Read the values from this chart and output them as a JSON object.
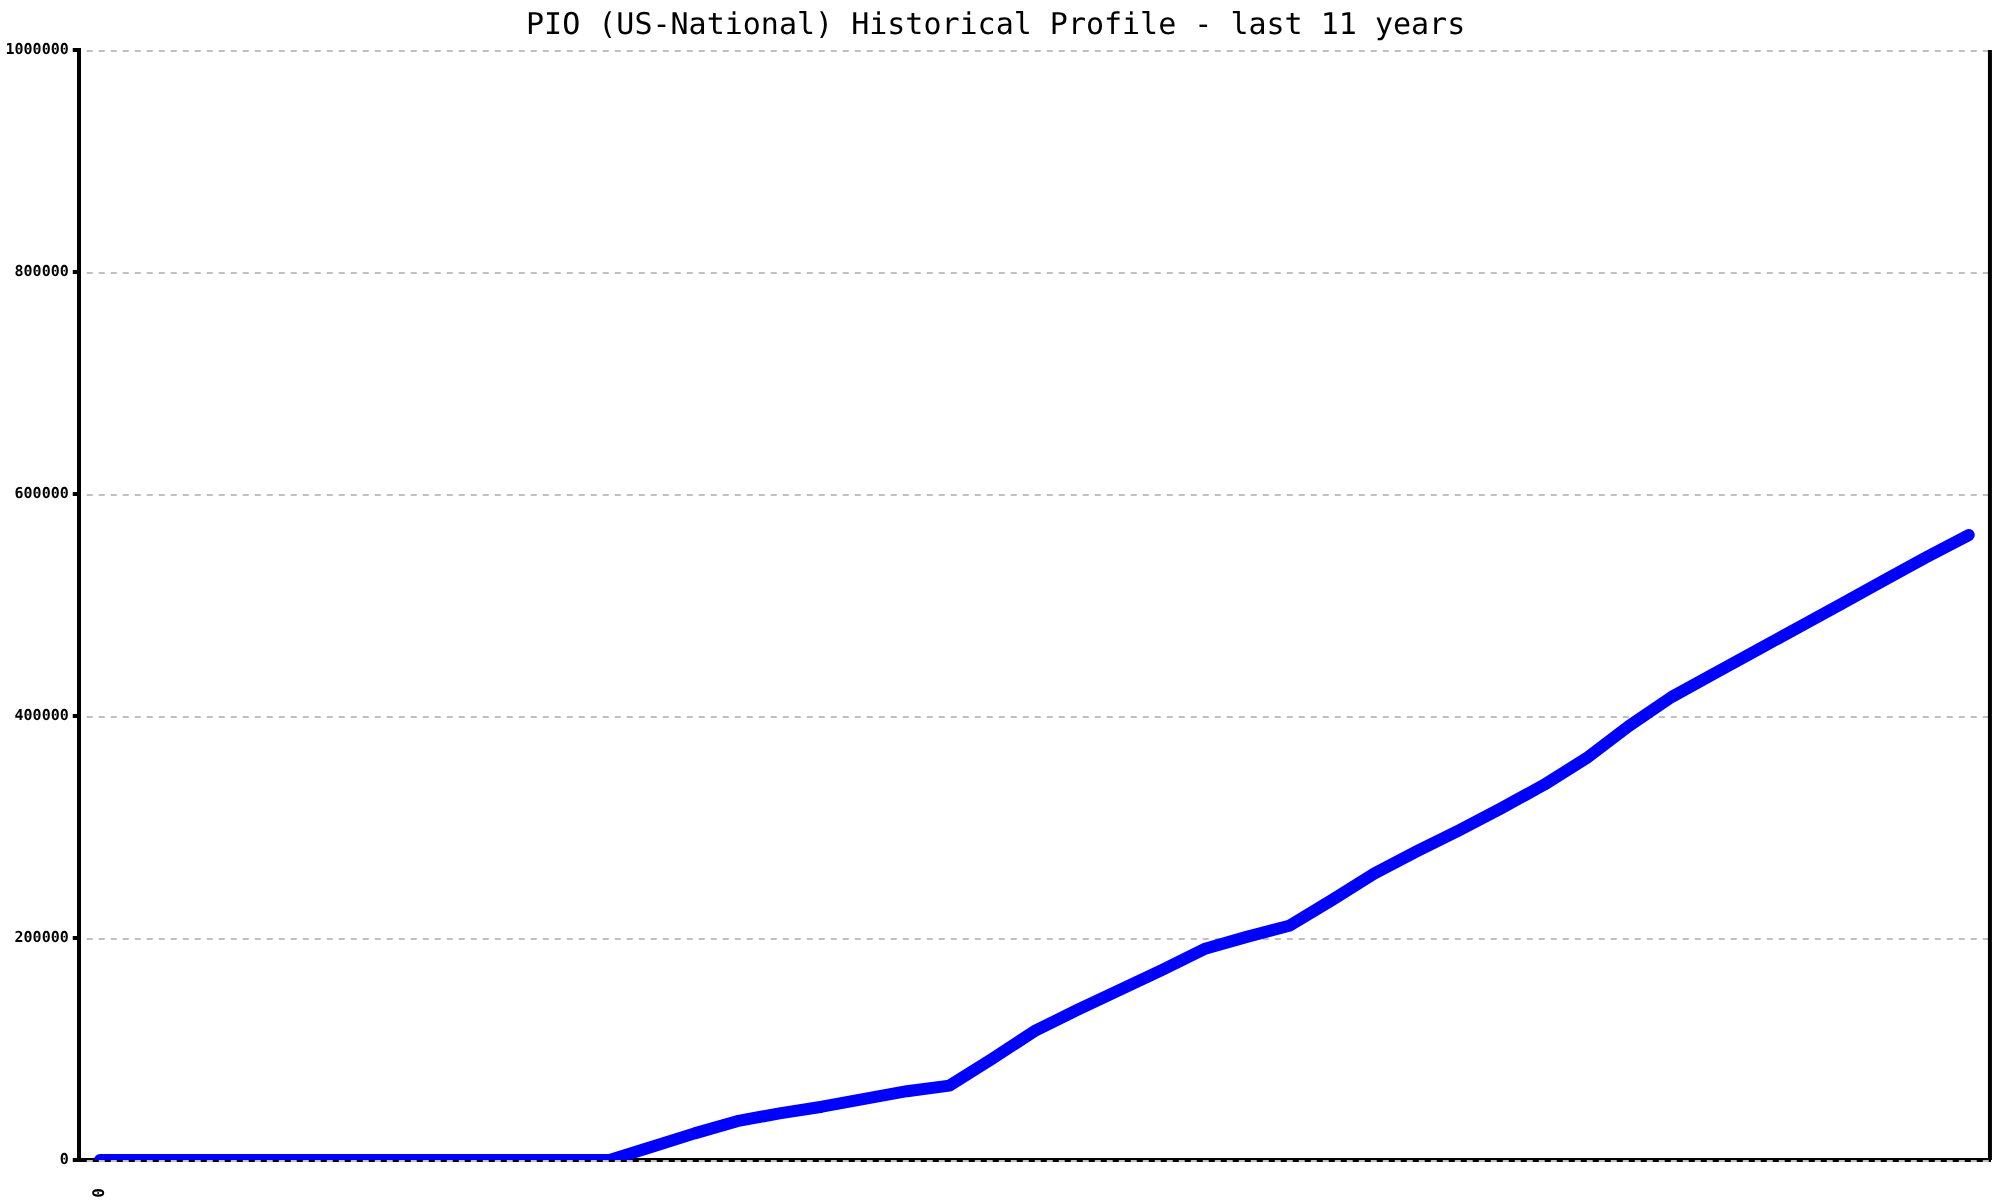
{
  "chart_data": {
    "type": "line",
    "title": "PIO (US-National) Historical Profile - last 11 years",
    "categories": [
      "0",
      null,
      null,
      null,
      null,
      null,
      null,
      null,
      null,
      null,
      null,
      null,
      null,
      null,
      null,
      null,
      null,
      null,
      null,
      null,
      null,
      null,
      null,
      null,
      null,
      null,
      null,
      null,
      null,
      null,
      null,
      null,
      null,
      null,
      null,
      null,
      null,
      null,
      null,
      null,
      null,
      null,
      null,
      null,
      null
    ],
    "series": [
      {
        "color": "#0000ff",
        "values": [
          0,
          0,
          0,
          0,
          0,
          0,
          0,
          0,
          0,
          0,
          0,
          0,
          0,
          12000,
          24000,
          35000,
          42000,
          48000,
          55000,
          62000,
          67000,
          91000,
          116000,
          135000,
          153000,
          171000,
          190000,
          201000,
          211000,
          234000,
          258000,
          278000,
          297000,
          317000,
          338000,
          362000,
          391000,
          417000,
          438000,
          459000,
          480000,
          501000,
          522000,
          543000,
          563000
        ]
      }
    ],
    "ylim": [
      0,
      1000000
    ],
    "yticks": [
      0,
      200000,
      400000,
      600000,
      800000,
      1000000
    ],
    "grid": "y",
    "legend": false
  }
}
